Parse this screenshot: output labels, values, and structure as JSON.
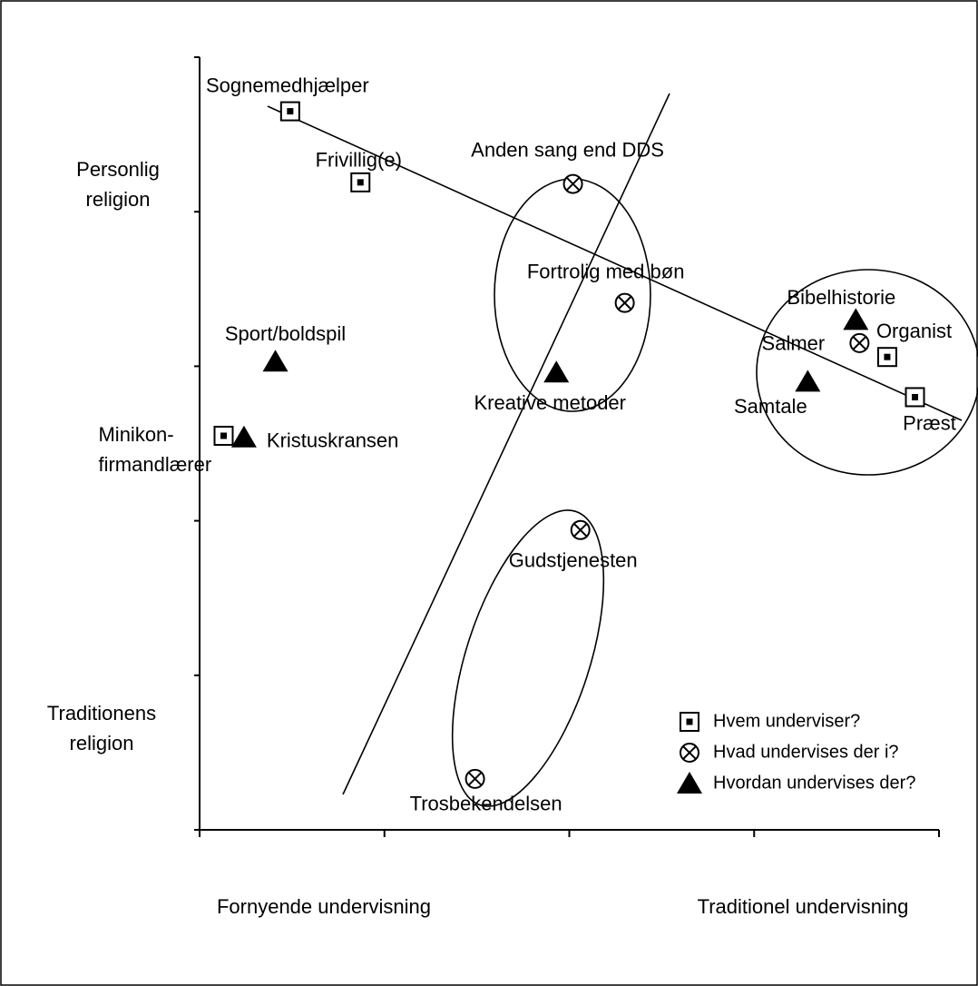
{
  "chart_data": {
    "type": "scatter",
    "x_labels": [
      "Fornyende undervisning",
      "Traditionel undervisning"
    ],
    "y_labels": [
      [
        "Personlig",
        "religion"
      ],
      [
        "Traditionens",
        "religion"
      ]
    ],
    "xlim": [
      0,
      4
    ],
    "ylim": [
      0,
      5
    ],
    "xticks": [
      0,
      1,
      2,
      3,
      4
    ],
    "yticks": [
      0,
      1,
      2,
      3,
      4,
      5
    ],
    "color": "#000000",
    "series": [
      {
        "name": "Hvem underviser?",
        "marker": "square",
        "labels": [
          "Sognemedhjælper",
          "Frivillig(e)",
          [
            "Minikon-",
            "firmandlærer"
          ],
          "Organist",
          "Præst"
        ],
        "x": [
          0.49,
          0.87,
          0.13,
          3.72,
          3.87
        ],
        "values": [
          4.65,
          4.19,
          2.55,
          3.06,
          2.8
        ]
      },
      {
        "name": "Hvad undervises der i?",
        "marker": "circle",
        "labels": [
          "Anden sang end DDS",
          "Fortrolig med bøn",
          "Salmer",
          "Gudstjenesten",
          "Trosbekendelsen"
        ],
        "x": [
          2.02,
          2.3,
          3.57,
          2.06,
          1.49
        ],
        "values": [
          4.18,
          3.41,
          3.15,
          1.94,
          0.33
        ]
      },
      {
        "name": "Hvordan undervises der?",
        "marker": "triangle",
        "labels": [
          "Sport/boldspil",
          "Kristuskransen",
          "Kreative metoder",
          "Bibelhistorie",
          "Samtale"
        ],
        "x": [
          0.41,
          0.24,
          1.93,
          3.55,
          3.29
        ],
        "values": [
          3.03,
          2.54,
          2.96,
          3.3,
          2.9
        ]
      }
    ]
  }
}
